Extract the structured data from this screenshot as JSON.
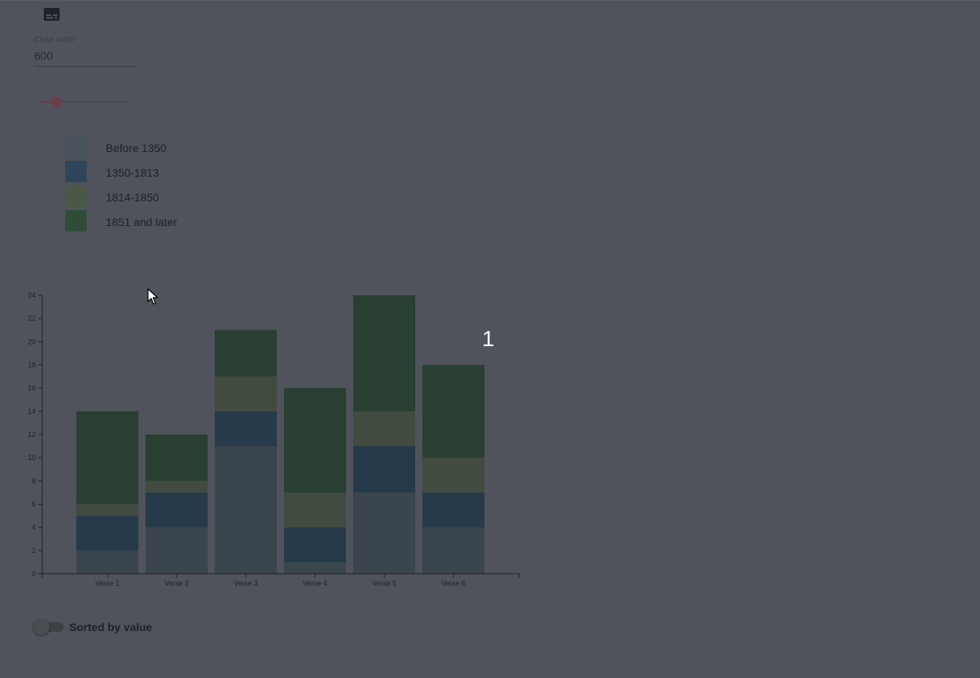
{
  "controls": {
    "chart_width_label": "Chart width",
    "chart_width_value": "600",
    "slider_value_fraction": 0.18,
    "sort_toggle_label": "Sorted by value",
    "sort_toggle_on": false
  },
  "overlay": {
    "page_number": "1"
  },
  "icons": {
    "top_left": "subtitles-icon",
    "pointer": "mouse-cursor-icon"
  },
  "colors": {
    "background": "#50535b",
    "slider_accent": "#6b3d48",
    "axis": "#1f2124"
  },
  "chart_data": {
    "type": "bar",
    "stacked": true,
    "categories": [
      "Verse 1",
      "Verse 2",
      "Verse 3",
      "Verse 4",
      "Verse 5",
      "Verse 6"
    ],
    "series": [
      {
        "name": "Before 1350",
        "color": "#3a454e",
        "values": [
          2,
          4,
          11,
          1,
          7,
          4
        ]
      },
      {
        "name": "1350-1813",
        "color": "#263a4a",
        "values": [
          3,
          3,
          3,
          3,
          4,
          3
        ]
      },
      {
        "name": "1814-1850",
        "color": "#414b40",
        "values": [
          1,
          1,
          3,
          3,
          3,
          3
        ]
      },
      {
        "name": "1851 and later",
        "color": "#283f32",
        "values": [
          8,
          4,
          4,
          9,
          10,
          8
        ]
      }
    ],
    "legend_swatch_colors": [
      "#48535c",
      "#2e465a",
      "#4b5848",
      "#2f4c38"
    ],
    "yticks": [
      "0",
      "2",
      "4",
      "6",
      "8",
      "10",
      "12",
      "14",
      "16",
      "18",
      "20",
      "22",
      "24"
    ],
    "ylim": [
      0,
      24
    ],
    "title": "",
    "xlabel": "",
    "ylabel": "",
    "grid": false,
    "legend_position": "top-left"
  }
}
